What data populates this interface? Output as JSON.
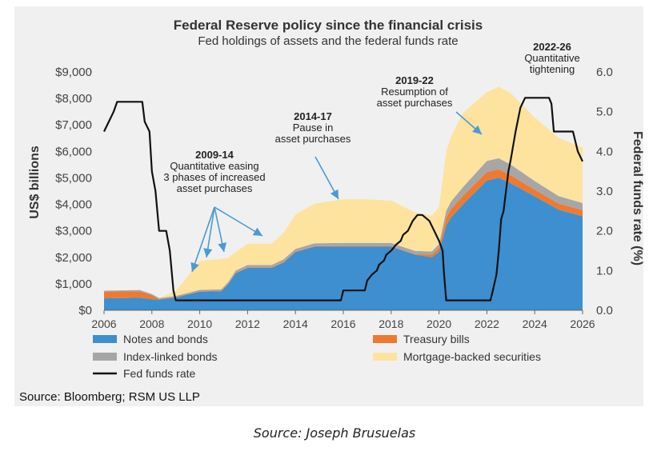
{
  "chart_data": {
    "type": "area",
    "title": "Federal Reserve policy since the financial crisis",
    "subtitle": "Fed holdings of assets and the federal funds rate",
    "ylabel": "US$ billions",
    "y2label": "Federal funds rate (%)",
    "xlim": [
      2006,
      2026
    ],
    "ylim": [
      0,
      9000
    ],
    "y2lim": [
      0,
      6
    ],
    "x_ticks": [
      "2006",
      "2008",
      "2010",
      "2012",
      "2014",
      "2016",
      "2018",
      "2020",
      "2022",
      "2024",
      "2026"
    ],
    "y_ticks": [
      "$0",
      "$1,000",
      "$2,000",
      "$3,000",
      "$4,000",
      "$5,000",
      "$6,000",
      "$7,000",
      "$8,000",
      "$9,000"
    ],
    "y2_ticks": [
      "0.0",
      "1.0",
      "2.0",
      "3.0",
      "4.0",
      "5.0",
      "6.0"
    ],
    "colors": {
      "notes_and_bonds": "#3d8fcf",
      "treasury_bills": "#ee7a30",
      "index_linked_bonds": "#a6a6a6",
      "mortgage_backed_securities": "#fde39e",
      "fed_funds_rate": "#111111"
    },
    "legend": [
      {
        "key": "notes_and_bonds",
        "label": "Notes and bonds",
        "type": "swatch"
      },
      {
        "key": "treasury_bills",
        "label": "Treasury bills",
        "type": "swatch"
      },
      {
        "key": "index_linked_bonds",
        "label": "Index-linked bonds",
        "type": "swatch"
      },
      {
        "key": "mortgage_backed_securities",
        "label": "Mortgage-backed securities",
        "type": "swatch"
      },
      {
        "key": "fed_funds_rate",
        "label": "Fed funds rate",
        "type": "line"
      }
    ],
    "legend_position": "bottom",
    "stack_x": [
      2006,
      2007.5,
      2008,
      2008.3,
      2009,
      2009.3,
      2010,
      2010.9,
      2011.2,
      2011.5,
      2012,
      2013,
      2013.5,
      2014,
      2014.8,
      2016,
      2017,
      2018,
      2019,
      2019.7,
      2020,
      2020.3,
      2020.5,
      2021,
      2022,
      2022.5,
      2023,
      2024,
      2025,
      2026
    ],
    "series": [
      {
        "key": "notes_and_bonds",
        "name": "Notes and bonds",
        "values": [
          450,
          470,
          420,
          400,
          480,
          550,
          700,
          720,
          1000,
          1400,
          1600,
          1600,
          1800,
          2200,
          2400,
          2400,
          2400,
          2400,
          2100,
          2000,
          2200,
          3200,
          3500,
          4000,
          4900,
          5000,
          4800,
          4300,
          3800,
          3550
        ]
      },
      {
        "key": "treasury_bills",
        "name": "Treasury bills",
        "values": [
          250,
          250,
          150,
          20,
          20,
          20,
          20,
          20,
          20,
          20,
          20,
          20,
          20,
          20,
          20,
          20,
          20,
          20,
          20,
          100,
          150,
          300,
          320,
          320,
          320,
          320,
          300,
          250,
          230,
          230
        ]
      },
      {
        "key": "index_linked_bonds",
        "name": "Index-linked bonds",
        "values": [
          40,
          40,
          40,
          40,
          40,
          40,
          50,
          50,
          60,
          80,
          90,
          90,
          100,
          100,
          110,
          120,
          120,
          120,
          120,
          120,
          150,
          250,
          280,
          330,
          420,
          420,
          400,
          330,
          280,
          270
        ]
      },
      {
        "key": "mortgage_backed_securities",
        "name": "Mortgage-backed securities",
        "values": [
          0,
          0,
          0,
          0,
          200,
          450,
          1100,
          1150,
          900,
          700,
          800,
          800,
          1000,
          1300,
          1500,
          1650,
          1650,
          1600,
          1450,
          1350,
          1400,
          2250,
          2450,
          2800,
          2600,
          2700,
          2700,
          2400,
          2200,
          2100
        ]
      }
    ],
    "fed_funds_rate": {
      "x": [
        2006,
        2006.2,
        2006.4,
        2006.55,
        2007.6,
        2007.7,
        2007.9,
        2008.0,
        2008.15,
        2008.3,
        2008.6,
        2008.75,
        2008.9,
        2009.0,
        2015.9,
        2016.0,
        2016.9,
        2017.0,
        2017.2,
        2017.4,
        2017.5,
        2017.7,
        2017.8,
        2018.0,
        2018.2,
        2018.4,
        2018.5,
        2018.7,
        2018.9,
        2019.1,
        2019.3,
        2019.6,
        2019.8,
        2020.0,
        2020.15,
        2020.2,
        2020.3,
        2022.15,
        2022.25,
        2022.4,
        2022.5,
        2022.6,
        2022.7,
        2022.9,
        2023.0,
        2023.2,
        2023.4,
        2023.6,
        2024.6,
        2024.7,
        2024.8,
        2025.6,
        2025.8,
        2026.0
      ],
      "y": [
        4.5,
        4.75,
        5.0,
        5.25,
        5.25,
        4.75,
        4.5,
        3.5,
        3.0,
        2.0,
        2.0,
        1.5,
        0.5,
        0.25,
        0.25,
        0.5,
        0.5,
        0.75,
        0.9,
        1.0,
        1.15,
        1.25,
        1.4,
        1.5,
        1.65,
        1.75,
        1.9,
        2.0,
        2.25,
        2.4,
        2.4,
        2.25,
        2.0,
        1.75,
        1.5,
        1.0,
        0.25,
        0.25,
        0.5,
        0.9,
        1.5,
        2.3,
        2.5,
        3.5,
        3.8,
        4.5,
        5.1,
        5.35,
        5.35,
        5.2,
        4.5,
        4.5,
        4.0,
        3.75
      ]
    },
    "annotations": [
      {
        "id": "2009-14",
        "title": "2009-14",
        "lines": [
          "Quantitative easing",
          "3 phases of increased",
          "asset purchases"
        ]
      },
      {
        "id": "2014-17",
        "title": "2014-17",
        "lines": [
          "Pause in",
          "asset purchases"
        ]
      },
      {
        "id": "2019-22",
        "title": "2019-22",
        "lines": [
          "Resumption of",
          "asset purchases"
        ]
      },
      {
        "id": "2022-26",
        "title": "2022-26",
        "lines": [
          "Quantitative",
          "tightening"
        ]
      }
    ],
    "source": "Source: Bloomberg; RSM US LLP",
    "grid": false
  },
  "caption": "Source: Joseph Brusuelas"
}
